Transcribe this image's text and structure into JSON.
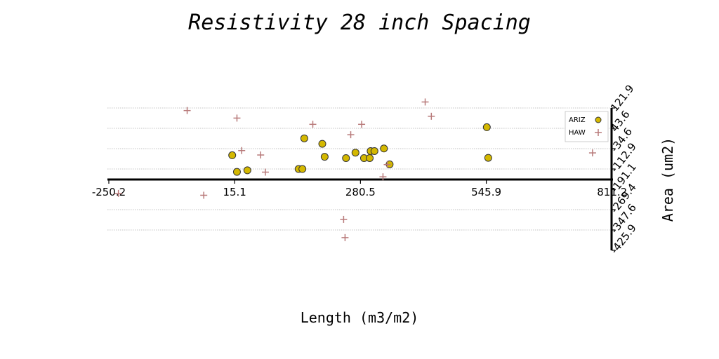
{
  "chart_data": {
    "type": "scatter",
    "title": "Resistivity 28 inch Spacing",
    "xlabel": "Length (m3/m2)",
    "ylabel": "Area (um2)",
    "xlim": [
      -250.2,
      811.6
    ],
    "ylim": [
      -425.9,
      121.9
    ],
    "x_ticks": [
      -250.2,
      15.1,
      280.5,
      545.9,
      811.2
    ],
    "x_tick_labels": [
      "-250.2",
      "15.1",
      "280.5",
      "545.9",
      "811.2"
    ],
    "y_ticks": [
      121.9,
      43.6,
      -34.6,
      -112.9,
      -191.1,
      -269.4,
      -347.6,
      -425.9
    ],
    "y_tick_labels": [
      "121.9",
      "43.6",
      "-34.6",
      "-112.9",
      "-191.1",
      "-269.4",
      "-347.6",
      "-425.9"
    ],
    "grid": "horizontal dotted",
    "legend_position": "top-right",
    "series": [
      {
        "name": "ARIZ",
        "marker": "circle",
        "color": "#d4b800",
        "edge_color": "#333333",
        "points": [
          {
            "x": 10,
            "y": -60
          },
          {
            "x": 20,
            "y": -124
          },
          {
            "x": 42,
            "y": -118
          },
          {
            "x": 150,
            "y": -113
          },
          {
            "x": 158,
            "y": -113
          },
          {
            "x": 162,
            "y": 5
          },
          {
            "x": 200,
            "y": -16
          },
          {
            "x": 205,
            "y": -66
          },
          {
            "x": 250,
            "y": -71
          },
          {
            "x": 270,
            "y": -50
          },
          {
            "x": 288,
            "y": -71
          },
          {
            "x": 300,
            "y": -71
          },
          {
            "x": 302,
            "y": -44
          },
          {
            "x": 310,
            "y": -44
          },
          {
            "x": 330,
            "y": -34
          },
          {
            "x": 342,
            "y": -95
          },
          {
            "x": 547,
            "y": 48
          },
          {
            "x": 550,
            "y": -70
          }
        ]
      },
      {
        "name": "HAW",
        "marker": "plus",
        "color": "#b87a7a",
        "points": [
          {
            "x": -230,
            "y": -207
          },
          {
            "x": -85,
            "y": 112
          },
          {
            "x": -50,
            "y": -214
          },
          {
            "x": 20,
            "y": 83
          },
          {
            "x": 30,
            "y": -42
          },
          {
            "x": 70,
            "y": -59
          },
          {
            "x": 80,
            "y": -125
          },
          {
            "x": 180,
            "y": 59
          },
          {
            "x": 245,
            "y": -307
          },
          {
            "x": 248,
            "y": -377
          },
          {
            "x": 260,
            "y": 19
          },
          {
            "x": 283,
            "y": 59
          },
          {
            "x": 328,
            "y": -143
          },
          {
            "x": 337,
            "y": -96
          },
          {
            "x": 417,
            "y": 145
          },
          {
            "x": 430,
            "y": 90
          },
          {
            "x": 770,
            "y": -51
          }
        ]
      }
    ]
  }
}
